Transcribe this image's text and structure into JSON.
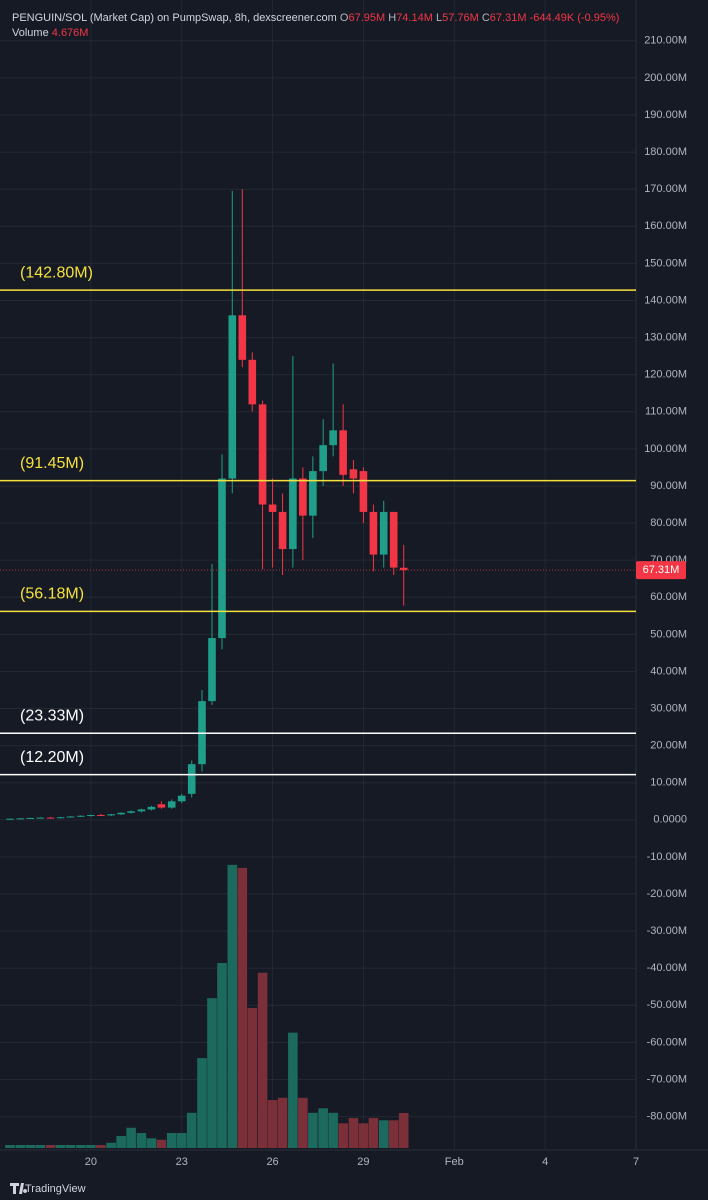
{
  "chart_data": {
    "type": "candlestick",
    "title": "PENGUIN/SOL (Market Cap) on PumpSwap, 8h, dexscreener.com",
    "ohlc_keys": [
      "O",
      "H",
      "L",
      "C"
    ],
    "volume_label": "Volume",
    "last_labels": {
      "open": "67.95M",
      "high": "74.14M",
      "low": "57.76M",
      "close": "67.31M",
      "change": "-644.49K (-0.95%)",
      "volume": "4.676M"
    },
    "brand": "TradingView",
    "x": [
      17.33,
      17.67,
      18,
      18.33,
      18.67,
      19,
      19.33,
      19.67,
      20,
      20.33,
      20.67,
      21,
      21.33,
      21.67,
      22,
      22.33,
      22.67,
      23,
      23.33,
      23.67,
      24,
      24.33,
      24.67,
      25,
      25.33,
      25.67,
      26,
      26.33,
      26.67,
      27,
      27.33,
      27.67,
      28,
      28.33,
      28.67,
      29,
      29.33,
      29.67,
      30,
      30.33
    ],
    "open": [
      0.2,
      0.3,
      0.4,
      0.5,
      0.6,
      0.5,
      0.7,
      0.9,
      1.1,
      1.3,
      1.2,
      1.5,
      1.9,
      2.3,
      2.8,
      4.2,
      3.3,
      5,
      7,
      15,
      32,
      49,
      92,
      136,
      124,
      112,
      85,
      83,
      73,
      92,
      82,
      94,
      101,
      105,
      94.5,
      94,
      83,
      71.5,
      83,
      67.95
    ],
    "high": [
      0.4,
      0.5,
      0.6,
      0.7,
      0.8,
      0.8,
      1.0,
      1.2,
      1.4,
      1.6,
      1.6,
      2.0,
      2.5,
      3.0,
      3.8,
      5,
      5.5,
      7,
      16,
      35,
      69,
      98.5,
      169.5,
      170,
      126,
      113,
      92,
      88,
      125,
      95,
      98,
      108,
      123,
      112,
      97,
      95,
      85,
      86,
      83,
      74.14
    ],
    "low": [
      0.1,
      0.2,
      0.3,
      0.4,
      0.4,
      0.4,
      0.6,
      0.8,
      0.9,
      1.1,
      1.0,
      1.3,
      1.7,
      2.0,
      2.5,
      3,
      3.0,
      4.5,
      6,
      13,
      31,
      46,
      88,
      122,
      110,
      67.5,
      68,
      66,
      68,
      70,
      76,
      90,
      98,
      90,
      88,
      80,
      67,
      68,
      66,
      57.76
    ],
    "close": [
      0.3,
      0.4,
      0.5,
      0.6,
      0.5,
      0.7,
      0.9,
      1.1,
      1.3,
      1.2,
      1.5,
      1.9,
      2.3,
      2.8,
      3.5,
      3.3,
      5.0,
      6.5,
      15,
      32,
      49,
      92,
      136,
      124,
      112,
      85,
      83,
      73,
      92,
      82,
      94,
      101,
      105,
      93,
      92,
      83,
      71.5,
      83,
      68,
      67.31
    ],
    "volume": [
      0.4,
      0.4,
      0.4,
      0.4,
      0.4,
      0.4,
      0.4,
      0.4,
      0.4,
      0.4,
      0.7,
      1.6,
      2.7,
      2,
      1.3,
      1.1,
      2,
      2,
      4.7,
      12,
      20,
      24.7,
      37.8,
      37.4,
      18.7,
      23.4,
      6.4,
      6.7,
      15.4,
      6.7,
      4.7,
      5.3,
      4.7,
      3.3,
      4,
      3.3,
      4,
      3.7,
      3.7,
      4.676
    ],
    "up_color": "#1f9f8a",
    "down_color": "#f23645",
    "up_volume_color": "#1c6a5e",
    "down_volume_color": "#7b2f38",
    "levels": [
      {
        "value": 142.8,
        "label": "(142.80M)",
        "color": "#f5e13c"
      },
      {
        "value": 91.45,
        "label": "(91.45M)",
        "color": "#f5e13c"
      },
      {
        "value": 56.18,
        "label": "(56.18M)",
        "color": "#f5e13c"
      },
      {
        "value": 23.33,
        "label": "(23.33M)",
        "color": "#ffffff"
      },
      {
        "value": 12.2,
        "label": "(12.20M)",
        "color": "#ffffff"
      }
    ],
    "xlim": [
      17,
      38
    ],
    "xticks": [
      20,
      23,
      26,
      29,
      {
        "value": 32,
        "label": "Feb"
      },
      {
        "value": 35,
        "label": "4"
      },
      {
        "value": 38,
        "label": "7"
      }
    ],
    "ylim": [
      -89,
      221
    ],
    "yticks": [
      {
        "value": 210,
        "label": "210.00M"
      },
      {
        "value": 200,
        "label": "200.00M"
      },
      {
        "value": 190,
        "label": "190.00M"
      },
      {
        "value": 180,
        "label": "180.00M"
      },
      {
        "value": 170,
        "label": "170.00M"
      },
      {
        "value": 160,
        "label": "160.00M"
      },
      {
        "value": 150,
        "label": "150.00M"
      },
      {
        "value": 140,
        "label": "140.00M"
      },
      {
        "value": 130,
        "label": "130.00M"
      },
      {
        "value": 120,
        "label": "120.00M"
      },
      {
        "value": 110,
        "label": "110.00M"
      },
      {
        "value": 100,
        "label": "100.00M"
      },
      {
        "value": 90,
        "label": "90.00M"
      },
      {
        "value": 80,
        "label": "80.00M"
      },
      {
        "value": 70,
        "label": "70.00M"
      },
      {
        "value": 60,
        "label": "60.00M"
      },
      {
        "value": 50,
        "label": "50.00M"
      },
      {
        "value": 40,
        "label": "40.00M"
      },
      {
        "value": 30,
        "label": "30.00M"
      },
      {
        "value": 20,
        "label": "20.00M"
      },
      {
        "value": 10,
        "label": "10.00M"
      },
      {
        "value": 0,
        "label": "0.0000"
      },
      {
        "value": -10,
        "label": "-10.00M"
      },
      {
        "value": -20,
        "label": "-20.00M"
      },
      {
        "value": -30,
        "label": "-30.00M"
      },
      {
        "value": -40,
        "label": "-40.00M"
      },
      {
        "value": -50,
        "label": "-50.00M"
      },
      {
        "value": -60,
        "label": "-60.00M"
      },
      {
        "value": -70,
        "label": "-70.00M"
      },
      {
        "value": -80,
        "label": "-80.00M"
      }
    ],
    "grid": true
  }
}
